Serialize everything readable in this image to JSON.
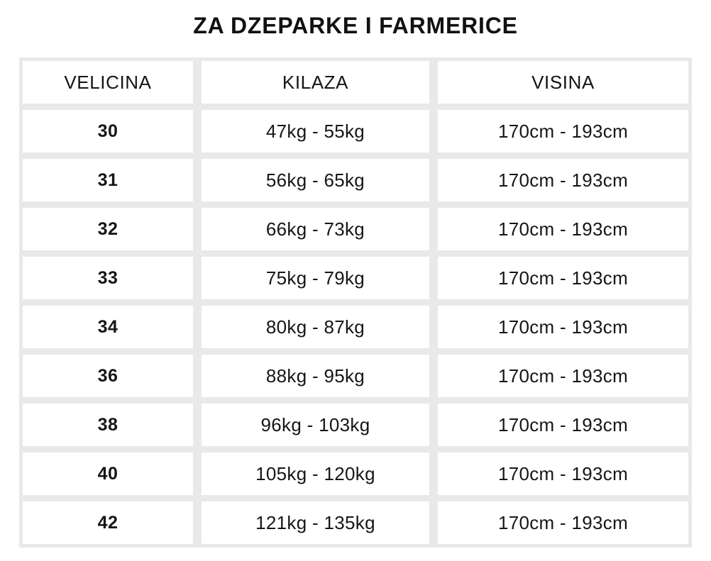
{
  "title": "ZA DZEPARKE I FARMERICE",
  "table": {
    "columns": [
      "VELICINA",
      "KILAZA",
      "VISINA"
    ],
    "rows": [
      [
        "30",
        "47kg - 55kg",
        "170cm - 193cm"
      ],
      [
        "31",
        "56kg - 65kg",
        "170cm - 193cm"
      ],
      [
        "32",
        "66kg - 73kg",
        "170cm - 193cm"
      ],
      [
        "33",
        "75kg - 79kg",
        "170cm - 193cm"
      ],
      [
        "34",
        "80kg - 87kg",
        "170cm - 193cm"
      ],
      [
        "36",
        "88kg - 95kg",
        "170cm - 193cm"
      ],
      [
        "38",
        "96kg - 103kg",
        "170cm - 193cm"
      ],
      [
        "40",
        "105kg - 120kg",
        "170cm - 193cm"
      ],
      [
        "42",
        "121kg - 135kg",
        "170cm - 193cm"
      ]
    ]
  },
  "colors": {
    "page_bg": "#ffffff",
    "grid_bg": "#e8e9eb",
    "cell_bg": "#ffffff",
    "text": "#161616"
  }
}
